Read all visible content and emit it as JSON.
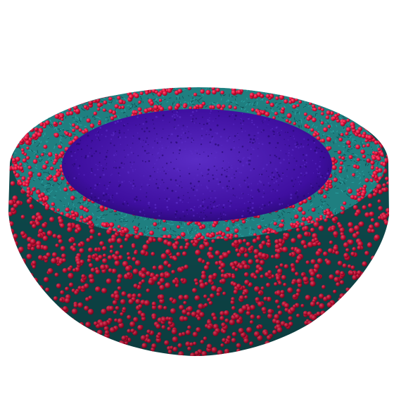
{
  "scene": {
    "subject": "hemispherical-vesicle-cutaway",
    "colors": {
      "background": "#ffffff",
      "headgroup": "#e0103c",
      "headgroup_highlight": "#ff5a78",
      "headgroup_shadow": "#8a0a25",
      "tail": "#1f7f80",
      "tail_dark": "#0f4f52",
      "core": "#3f0fa0",
      "core_dark": "#260870",
      "core_light": "#5a2cc4"
    }
  }
}
